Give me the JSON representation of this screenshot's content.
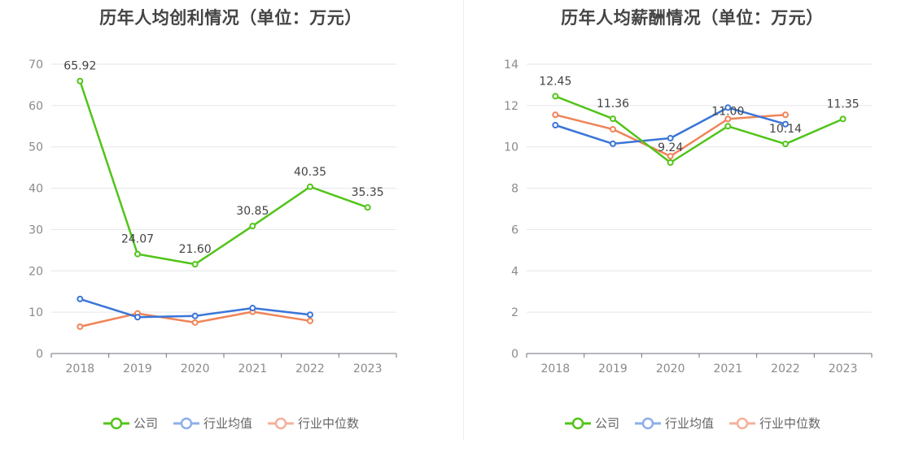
{
  "chart_data": [
    {
      "type": "line",
      "title": "历年人均创利情况（单位：万元）",
      "categories": [
        "2018",
        "2019",
        "2020",
        "2021",
        "2022",
        "2023"
      ],
      "ylim": [
        0,
        70
      ],
      "yticks": [
        0,
        10,
        20,
        30,
        40,
        50,
        60,
        70
      ],
      "grid": true,
      "legend_position": "bottom",
      "series": [
        {
          "name": "公司",
          "color": "#52c41a",
          "values": [
            65.92,
            24.07,
            21.6,
            30.85,
            40.35,
            35.35
          ],
          "labels": [
            "65.92",
            "24.07",
            "21.60",
            "30.85",
            "40.35",
            "35.35"
          ]
        },
        {
          "name": "行业均值",
          "color": "#3a75d8",
          "values": [
            13.2,
            8.8,
            9.1,
            11.0,
            9.4,
            null
          ]
        },
        {
          "name": "行业中位数",
          "color": "#f08357",
          "values": [
            6.5,
            9.7,
            7.5,
            10.1,
            7.9,
            null
          ]
        }
      ]
    },
    {
      "type": "line",
      "title": "历年人均薪酬情况（单位：万元）",
      "categories": [
        "2018",
        "2019",
        "2020",
        "2021",
        "2022",
        "2023"
      ],
      "ylim": [
        0,
        14
      ],
      "yticks": [
        0,
        2,
        4,
        6,
        8,
        10,
        12,
        14
      ],
      "grid": true,
      "legend_position": "bottom",
      "series": [
        {
          "name": "公司",
          "color": "#52c41a",
          "values": [
            12.45,
            11.36,
            9.24,
            11.0,
            10.14,
            11.35
          ],
          "labels": [
            "12.45",
            "11.36",
            "9.24",
            "11.00",
            "10.14",
            "11.35"
          ]
        },
        {
          "name": "行业均值",
          "color": "#3a75d8",
          "values": [
            11.05,
            10.15,
            10.42,
            11.9,
            11.1,
            null
          ]
        },
        {
          "name": "行业中位数",
          "color": "#f08357",
          "values": [
            11.55,
            10.85,
            9.55,
            11.35,
            11.55,
            null
          ]
        }
      ]
    }
  ],
  "legend": {
    "items": [
      {
        "label": "公司",
        "color": "#52c41a"
      },
      {
        "label": "行业均值",
        "color": "#8eaee9"
      },
      {
        "label": "行业中位数",
        "color": "#f4b09a"
      }
    ]
  }
}
